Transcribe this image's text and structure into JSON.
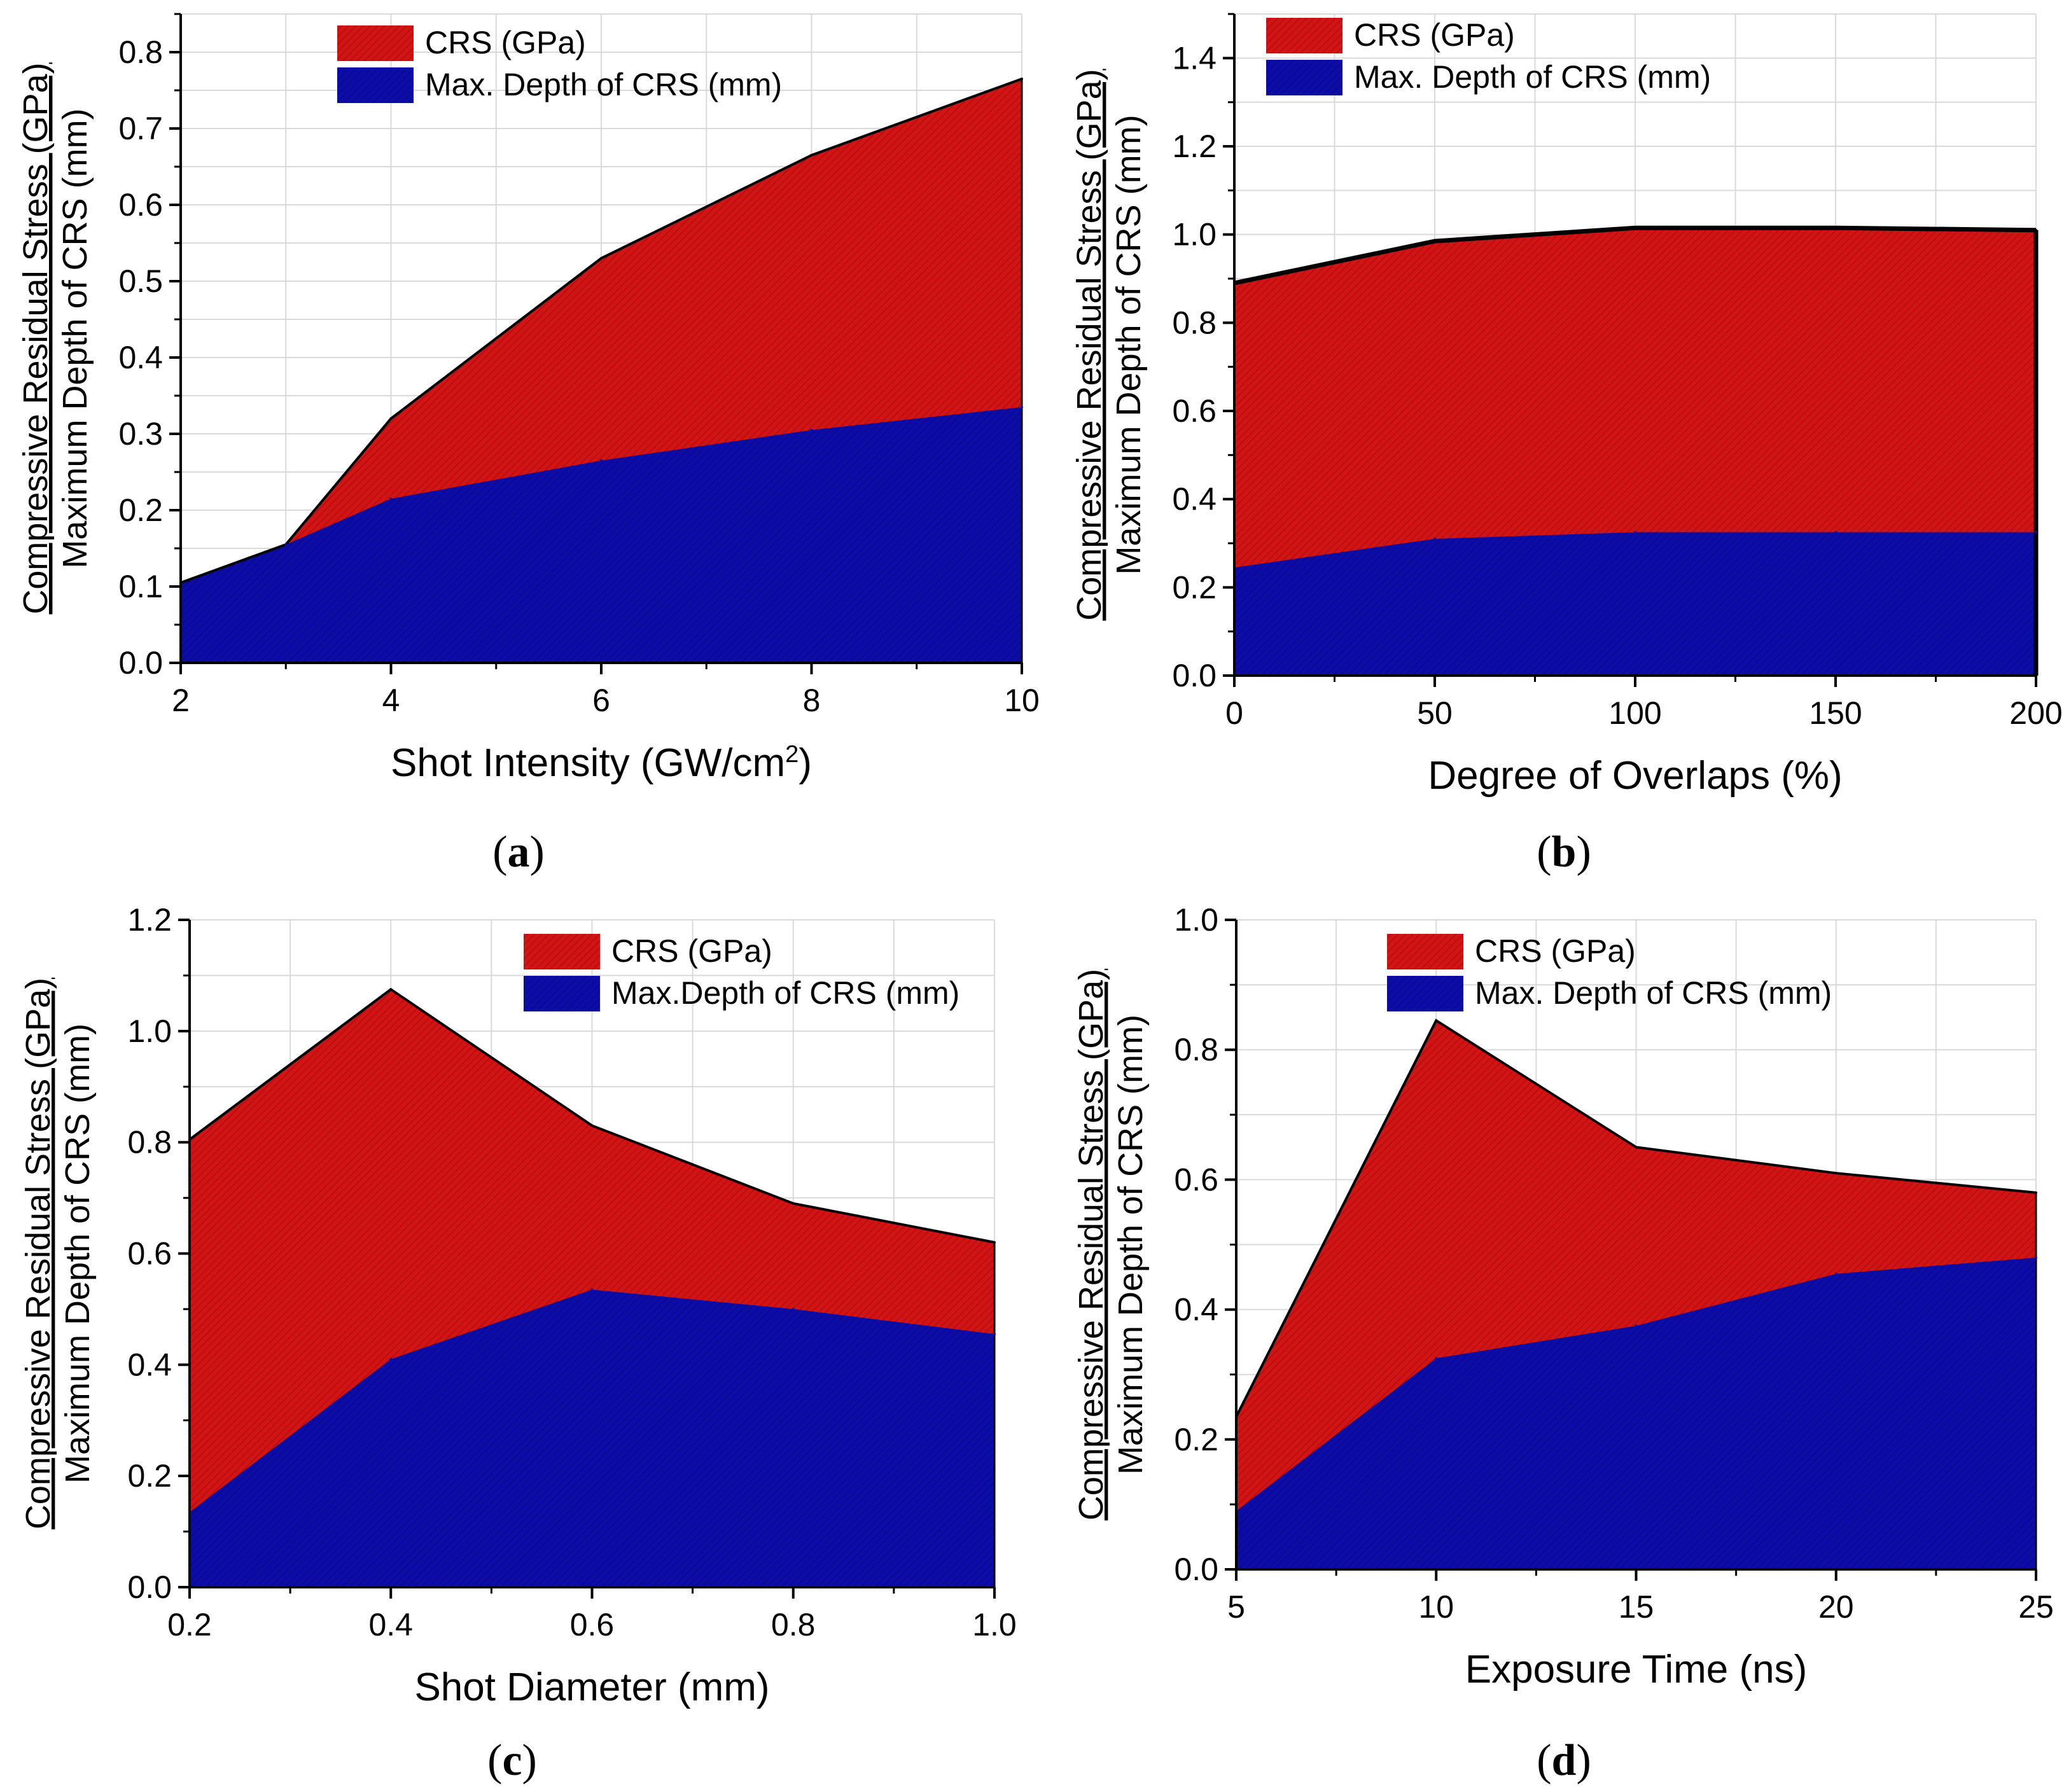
{
  "figure": {
    "colors": {
      "crs_fill": "#d21414",
      "depth_fill": "#0c0ca8",
      "crs_hatch": "#a00a0a",
      "depth_hatch": "#06067a",
      "outline": "#000000",
      "grid": "#d9d9d9"
    }
  },
  "chart_data": [
    {
      "type": "area",
      "panel_label": "a",
      "xlabel_main": "Shot Intensity (GW/cm",
      "xlabel_sup": "2",
      "xlabel_tail": ")",
      "ylabel_line1": "Compressive Residual Stress (GPa)",
      "ylabel_line2": "Maximum Depth of CRS (mm)",
      "xlim": [
        2,
        10
      ],
      "ylim": [
        0,
        0.85
      ],
      "xticks": [
        2,
        4,
        6,
        8,
        10
      ],
      "xtick_labels": [
        "2",
        "4",
        "6",
        "8",
        "10"
      ],
      "yticks": [
        0,
        0.1,
        0.2,
        0.3,
        0.4,
        0.5,
        0.6,
        0.7,
        0.8
      ],
      "ytick_labels": [
        "0.0",
        "0.1",
        "0.2",
        "0.3",
        "0.4",
        "0.5",
        "0.6",
        "0.7",
        "0.8"
      ],
      "legend_position": "top-center",
      "series": [
        {
          "name": "CRS (GPa)",
          "x": [
            2,
            3,
            4,
            6,
            8,
            10
          ],
          "values": [
            0.105,
            0.155,
            0.32,
            0.53,
            0.665,
            0.765
          ]
        },
        {
          "name": "Max. Depth of CRS (mm)",
          "x": [
            2,
            3,
            4,
            6,
            8,
            10
          ],
          "values": [
            0.105,
            0.155,
            0.215,
            0.265,
            0.305,
            0.335
          ]
        }
      ]
    },
    {
      "type": "area",
      "panel_label": "b",
      "xlabel_main": "Degree of Overlaps (%)",
      "xlabel_sup": "",
      "xlabel_tail": "",
      "ylabel_line1": "Compressive Residual Stress (GPa)",
      "ylabel_line2": "Maximum Depth of CRS (mm)",
      "xlim": [
        0,
        200
      ],
      "ylim": [
        0,
        1.5
      ],
      "xticks": [
        0,
        50,
        100,
        150,
        200
      ],
      "xtick_labels": [
        "0",
        "50",
        "100",
        "150",
        "200"
      ],
      "yticks": [
        0,
        0.2,
        0.4,
        0.6,
        0.8,
        1.0,
        1.2,
        1.4
      ],
      "ytick_labels": [
        "0.0",
        "0.2",
        "0.4",
        "0.6",
        "0.8",
        "1.0",
        "1.2",
        "1.4"
      ],
      "legend_position": "top-left",
      "series": [
        {
          "name": "CRS (GPa)",
          "x": [
            0,
            50,
            100,
            150,
            200
          ],
          "values": [
            0.89,
            0.985,
            1.015,
            1.015,
            1.01
          ]
        },
        {
          "name": "Max. Depth of CRS (mm)",
          "x": [
            0,
            50,
            100,
            150,
            200
          ],
          "values": [
            0.245,
            0.31,
            0.325,
            0.325,
            0.325
          ]
        }
      ]
    },
    {
      "type": "area",
      "panel_label": "c",
      "xlabel_main": "Shot Diameter (mm)",
      "xlabel_sup": "",
      "xlabel_tail": "",
      "ylabel_line1": "Compressive Residual Stress (GPa)",
      "ylabel_line2": "Maximum Depth of CRS (mm)",
      "xlim": [
        0.2,
        1.0
      ],
      "ylim": [
        0,
        1.2
      ],
      "xticks": [
        0.2,
        0.4,
        0.6,
        0.8,
        1.0
      ],
      "xtick_labels": [
        "0.2",
        "0.4",
        "0.6",
        "0.8",
        "1.0"
      ],
      "yticks": [
        0,
        0.2,
        0.4,
        0.6,
        0.8,
        1.0,
        1.2
      ],
      "ytick_labels": [
        "0.0",
        "0.2",
        "0.4",
        "0.6",
        "0.8",
        "1.0",
        "1.2"
      ],
      "legend_position": "top-right",
      "series": [
        {
          "name": "CRS (GPa)",
          "x": [
            0.2,
            0.4,
            0.6,
            0.8,
            1.0
          ],
          "values": [
            0.805,
            1.075,
            0.83,
            0.69,
            0.62
          ]
        },
        {
          "name": "Max.Depth of CRS (mm)",
          "x": [
            0.2,
            0.4,
            0.6,
            0.8,
            1.0
          ],
          "values": [
            0.135,
            0.41,
            0.535,
            0.5,
            0.455
          ]
        }
      ]
    },
    {
      "type": "area",
      "panel_label": "d",
      "xlabel_main": "Exposure Time (ns)",
      "xlabel_sup": "",
      "xlabel_tail": "",
      "ylabel_line1": "Compressive Residual Stress (GPa)",
      "ylabel_line2": "Maximum Depth of CRS (mm)",
      "xlim": [
        5,
        25
      ],
      "ylim": [
        0,
        1.0
      ],
      "xticks": [
        5,
        10,
        15,
        20,
        25
      ],
      "xtick_labels": [
        "5",
        "10",
        "15",
        "20",
        "25"
      ],
      "yticks": [
        0,
        0.2,
        0.4,
        0.6,
        0.8,
        1.0
      ],
      "ytick_labels": [
        "0.0",
        "0.2",
        "0.4",
        "0.6",
        "0.8",
        "1.0"
      ],
      "legend_position": "top-center",
      "series": [
        {
          "name": "CRS (GPa)",
          "x": [
            5,
            10,
            15,
            20,
            25
          ],
          "values": [
            0.235,
            0.845,
            0.65,
            0.61,
            0.58
          ]
        },
        {
          "name": "Max. Depth of CRS (mm)",
          "x": [
            5,
            10,
            15,
            20,
            25
          ],
          "values": [
            0.09,
            0.325,
            0.375,
            0.455,
            0.48
          ]
        }
      ]
    }
  ]
}
